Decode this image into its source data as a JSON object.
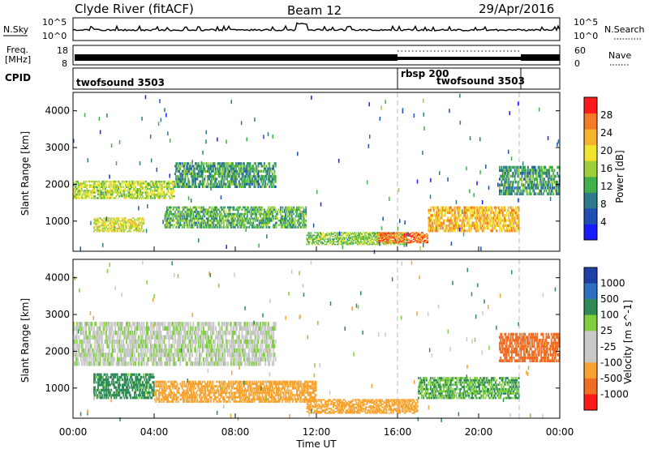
{
  "header": {
    "title_left": "Clyde River (fitACF)",
    "title_center": "Beam 12",
    "title_right": "29/Apr/2016"
  },
  "strips": {
    "nsky_label": "N.Sky",
    "nsky_ticks": [
      "10^5",
      "10^0"
    ],
    "nsearch_label": "N.Search",
    "freq_label_1": "Freq.",
    "freq_label_2": "[MHz]",
    "freq_ticks": [
      "18",
      "8"
    ],
    "nave_ticks": [
      "60",
      "0"
    ],
    "nave_label": "Nave",
    "cpid_label": "CPID",
    "cpid_segments": [
      "twofsound 3503",
      "rbsp 200",
      "twofsound 3503"
    ]
  },
  "colors": {
    "power_scale": [
      "#1a1aff",
      "#1f4fb5",
      "#2c7a8c",
      "#41b048",
      "#9ecf39",
      "#f0e52a",
      "#f4b42d",
      "#f47a26",
      "#ff1b1b"
    ],
    "velocity_scale": [
      "#1f3fa6",
      "#2f6fbf",
      "#2e8b57",
      "#7ecf3b",
      "#c8c8c8",
      "#c8c8c8",
      "#f6a22c",
      "#f06d22",
      "#ff1a1a"
    ]
  },
  "chart_data": [
    {
      "type": "heatmap",
      "panel": "power",
      "ylabel": "Slant Range [km]",
      "xlabel": "Time UT",
      "x_ticks": [
        "00:00",
        "04:00",
        "08:00",
        "12:00",
        "16:00",
        "20:00",
        "00:00"
      ],
      "xlim_hours": [
        0,
        24
      ],
      "ylim_km": [
        180,
        4500
      ],
      "y_ticks": [
        1000,
        2000,
        3000,
        4000
      ],
      "colorbar_label": "Power [dB]",
      "colorbar_ticks": [
        "4",
        "8",
        "12",
        "16",
        "20",
        "24",
        "28"
      ],
      "colorbar_range": [
        0,
        30
      ],
      "mode_change_hours": [
        16.0,
        22.0
      ],
      "echo_regions": [
        {
          "t": [
            0.0,
            5.0
          ],
          "r": [
            1600,
            2100
          ],
          "level": 16
        },
        {
          "t": [
            5.0,
            10.0
          ],
          "r": [
            1900,
            2600
          ],
          "level": 10
        },
        {
          "t": [
            1.0,
            3.5
          ],
          "r": [
            700,
            1100
          ],
          "level": 18
        },
        {
          "t": [
            4.5,
            11.5
          ],
          "r": [
            800,
            1400
          ],
          "level": 12
        },
        {
          "t": [
            11.5,
            16.5
          ],
          "r": [
            350,
            700
          ],
          "level": 14
        },
        {
          "t": [
            15.0,
            17.5
          ],
          "r": [
            400,
            700
          ],
          "level": 26
        },
        {
          "t": [
            17.5,
            22.0
          ],
          "r": [
            700,
            1400
          ],
          "level": 22
        },
        {
          "t": [
            21.0,
            24.0
          ],
          "r": [
            1700,
            2500
          ],
          "level": 10
        }
      ]
    },
    {
      "type": "heatmap",
      "panel": "velocity",
      "ylabel": "Slant Range [km]",
      "xlabel": "Time UT",
      "x_ticks": [
        "00:00",
        "04:00",
        "08:00",
        "12:00",
        "16:00",
        "20:00",
        "00:00"
      ],
      "xlim_hours": [
        0,
        24
      ],
      "ylim_km": [
        180,
        4500
      ],
      "y_ticks": [
        1000,
        2000,
        3000,
        4000
      ],
      "colorbar_label": "Velocity [m s^-1]",
      "colorbar_ticks": [
        "1000",
        "500",
        "100",
        "25",
        "-25",
        "-100",
        "-500",
        "-1000"
      ],
      "mode_change_hours": [
        16.0,
        22.0
      ],
      "echo_regions": [
        {
          "t": [
            0.0,
            10.0
          ],
          "r": [
            1600,
            2800
          ],
          "velocity": 0
        },
        {
          "t": [
            1.0,
            4.0
          ],
          "r": [
            700,
            1400
          ],
          "velocity": 150
        },
        {
          "t": [
            4.0,
            12.0
          ],
          "r": [
            600,
            1200
          ],
          "velocity": -400
        },
        {
          "t": [
            11.5,
            17.0
          ],
          "r": [
            300,
            700
          ],
          "velocity": -200
        },
        {
          "t": [
            17.0,
            22.0
          ],
          "r": [
            700,
            1300
          ],
          "velocity": 100
        },
        {
          "t": [
            21.0,
            24.0
          ],
          "r": [
            1700,
            2500
          ],
          "velocity": -800
        }
      ]
    }
  ],
  "axis": {
    "time_label": "Time UT",
    "power_colorbar_label": "Power [dB]",
    "velocity_colorbar_label": "Velocity [m s^-1]"
  }
}
